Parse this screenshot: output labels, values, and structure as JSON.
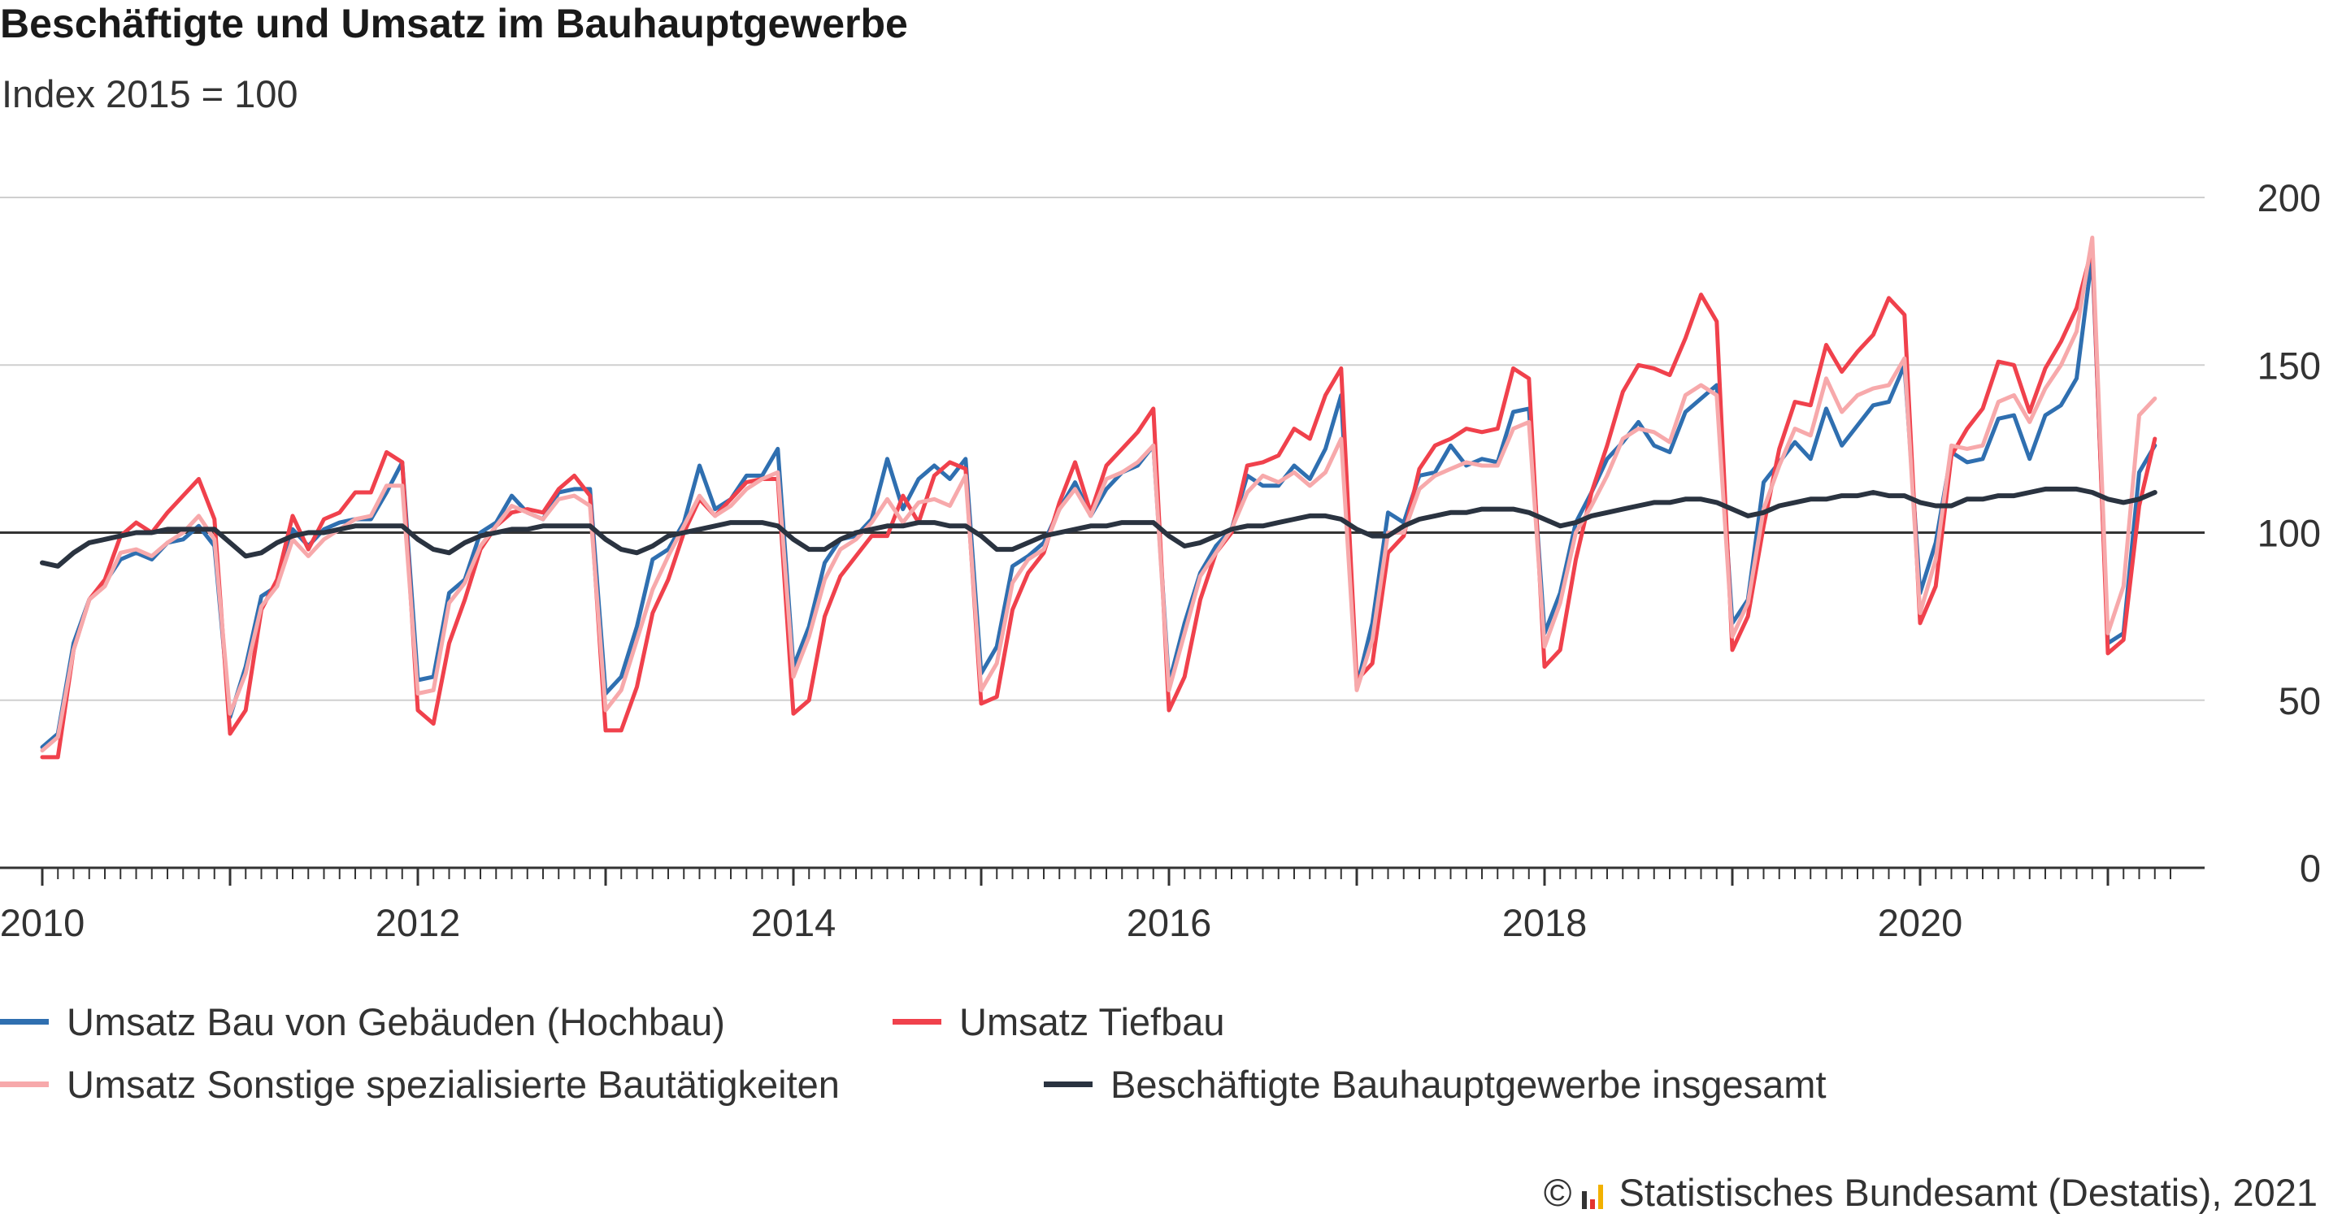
{
  "title": "Beschäftigte und Umsatz im Bauhauptgewerbe",
  "subtitle": "Index 2015 = 100",
  "footer": {
    "source": "Statistisches Bundesamt (Destatis), 2021",
    "copyright_icon": "copyright-icon",
    "logo_icon": "destatis-logo-icon"
  },
  "colors": {
    "hochbau": "#2f6fb0",
    "tiefbau": "#f0414c",
    "sonstige": "#f7a9ab",
    "beschaeftigte": "#2a3340",
    "grid": "#cfcfcf",
    "axis": "#333333"
  },
  "legend": [
    {
      "label": "Umsatz Bau von Gebäuden (Hochbau)",
      "color": "#2f6fb0"
    },
    {
      "label": "Umsatz Tiefbau",
      "color": "#f0414c"
    },
    {
      "label": "Umsatz Sonstige spezialisierte Bautätigkeiten",
      "color": "#f7a9ab"
    },
    {
      "label": "Beschäftigte Bauhauptgewerbe insgesamt",
      "color": "#2a3340"
    }
  ],
  "chart_data": {
    "type": "line",
    "title": "Beschäftigte und Umsatz im Bauhauptgewerbe",
    "subtitle": "Index 2015 = 100",
    "x_start": "2010-01",
    "x_end": "2021-04",
    "x_ticks": [
      "2010",
      "2012",
      "2014",
      "2016",
      "2018",
      "2020"
    ],
    "xlim": [
      2010,
      2021.4
    ],
    "ylim": [
      0,
      200
    ],
    "y_ticks": [
      0,
      50,
      100,
      150,
      200
    ],
    "reference_line": 100,
    "grid": "horizontal",
    "legend_position": "bottom",
    "series": [
      {
        "name": "Umsatz Bau von Gebäuden (Hochbau)",
        "values": [
          36,
          40,
          67,
          80,
          85,
          92,
          94,
          92,
          97,
          98,
          102,
          96,
          45,
          60,
          81,
          84,
          101,
          96,
          101,
          103,
          104,
          104,
          112,
          121,
          56,
          57,
          82,
          86,
          100,
          103,
          111,
          106,
          104,
          112,
          113,
          113,
          52,
          57,
          72,
          92,
          95,
          103,
          120,
          107,
          110,
          117,
          117,
          125,
          60,
          72,
          91,
          98,
          99,
          104,
          122,
          107,
          116,
          120,
          116,
          122,
          58,
          66,
          90,
          93,
          97,
          107,
          115,
          105,
          113,
          118,
          120,
          126,
          55,
          73,
          88,
          96,
          101,
          117,
          114,
          114,
          120,
          116,
          125,
          141,
          54,
          73,
          106,
          103,
          117,
          118,
          126,
          120,
          122,
          121,
          136,
          137,
          70,
          82,
          103,
          112,
          122,
          127,
          133,
          126,
          124,
          136,
          140,
          144,
          73,
          80,
          115,
          121,
          127,
          122,
          137,
          126,
          132,
          138,
          139,
          150,
          82,
          97,
          124,
          121,
          122,
          134,
          135,
          122,
          135,
          138,
          146,
          183,
          67,
          70,
          118,
          126
        ],
        "color": "#2f6fb0"
      },
      {
        "name": "Umsatz Tiefbau",
        "values": [
          33,
          33,
          65,
          80,
          86,
          99,
          103,
          100,
          106,
          111,
          116,
          104,
          40,
          47,
          77,
          86,
          105,
          95,
          104,
          106,
          112,
          112,
          124,
          121,
          47,
          43,
          67,
          80,
          95,
          102,
          106,
          107,
          106,
          113,
          117,
          111,
          41,
          41,
          54,
          76,
          86,
          100,
          110,
          105,
          110,
          115,
          116,
          116,
          46,
          50,
          75,
          87,
          93,
          99,
          99,
          111,
          103,
          117,
          121,
          119,
          49,
          51,
          77,
          88,
          94,
          109,
          121,
          106,
          120,
          125,
          130,
          137,
          47,
          57,
          80,
          94,
          100,
          120,
          121,
          123,
          131,
          128,
          141,
          149,
          56,
          61,
          94,
          99,
          119,
          126,
          128,
          131,
          130,
          131,
          149,
          146,
          60,
          65,
          92,
          112,
          126,
          142,
          150,
          149,
          147,
          158,
          171,
          163,
          65,
          75,
          102,
          125,
          139,
          138,
          156,
          148,
          154,
          159,
          170,
          165,
          73,
          84,
          123,
          131,
          137,
          151,
          150,
          136,
          149,
          157,
          167,
          185,
          64,
          68,
          108,
          128
        ],
        "color": "#f0414c"
      },
      {
        "name": "Umsatz Sonstige spezialisierte Bautätigkeiten",
        "values": [
          35,
          39,
          65,
          80,
          84,
          94,
          95,
          93,
          97,
          100,
          105,
          98,
          46,
          58,
          78,
          84,
          98,
          93,
          98,
          101,
          104,
          105,
          114,
          114,
          52,
          53,
          79,
          85,
          96,
          102,
          108,
          106,
          104,
          110,
          111,
          108,
          47,
          53,
          68,
          83,
          93,
          102,
          111,
          105,
          108,
          113,
          116,
          118,
          57,
          69,
          86,
          95,
          98,
          103,
          110,
          103,
          109,
          110,
          108,
          117,
          53,
          61,
          85,
          92,
          95,
          107,
          113,
          105,
          116,
          118,
          121,
          126,
          53,
          70,
          87,
          94,
          101,
          112,
          117,
          115,
          118,
          114,
          118,
          128,
          53,
          68,
          100,
          100,
          113,
          117,
          119,
          121,
          120,
          120,
          131,
          133,
          66,
          79,
          100,
          108,
          117,
          128,
          131,
          130,
          127,
          141,
          144,
          141,
          69,
          79,
          107,
          120,
          131,
          129,
          146,
          136,
          141,
          143,
          144,
          152,
          76,
          92,
          126,
          125,
          126,
          139,
          141,
          133,
          143,
          150,
          160,
          188,
          70,
          84,
          135,
          140
        ],
        "color": "#f7a9ab"
      },
      {
        "name": "Beschäftigte Bauhauptgewerbe insgesamt",
        "values": [
          91,
          90,
          94,
          97,
          98,
          99,
          100,
          100,
          101,
          101,
          101,
          101,
          97,
          93,
          94,
          97,
          99,
          100,
          100,
          101,
          102,
          102,
          102,
          102,
          98,
          95,
          94,
          97,
          99,
          100,
          101,
          101,
          102,
          102,
          102,
          102,
          98,
          95,
          94,
          96,
          99,
          100,
          101,
          102,
          103,
          103,
          103,
          102,
          98,
          95,
          95,
          98,
          100,
          101,
          102,
          102,
          103,
          103,
          102,
          102,
          99,
          95,
          95,
          97,
          99,
          100,
          101,
          102,
          102,
          103,
          103,
          103,
          99,
          96,
          97,
          99,
          101,
          102,
          102,
          103,
          104,
          105,
          105,
          104,
          101,
          99,
          99,
          102,
          104,
          105,
          106,
          106,
          107,
          107,
          107,
          106,
          104,
          102,
          103,
          105,
          106,
          107,
          108,
          109,
          109,
          110,
          110,
          109,
          107,
          105,
          106,
          108,
          109,
          110,
          110,
          111,
          111,
          112,
          111,
          111,
          109,
          108,
          108,
          110,
          110,
          111,
          111,
          112,
          113,
          113,
          113,
          112,
          110,
          109,
          110,
          112
        ],
        "color": "#2a3340"
      }
    ]
  }
}
